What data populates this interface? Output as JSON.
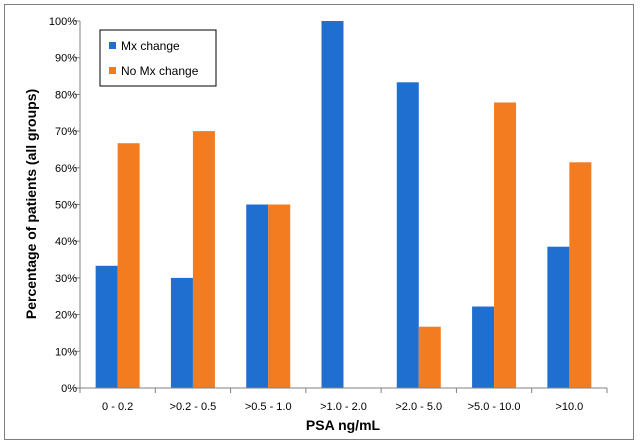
{
  "chart_data": {
    "type": "bar",
    "title": "",
    "xlabel": "PSA ng/mL",
    "ylabel": "Percentage of patients (all groups)",
    "ylim": [
      0,
      100
    ],
    "yticks": [
      "0%",
      "10%",
      "20%",
      "30%",
      "40%",
      "50%",
      "60%",
      "70%",
      "80%",
      "90%",
      "100%"
    ],
    "categories": [
      "0 - 0.2",
      ">0.2 - 0.5",
      ">0.5 - 1.0",
      ">1.0 - 2.0",
      ">2.0 - 5.0",
      ">5.0 - 10.0",
      ">10.0"
    ],
    "series": [
      {
        "name": "Mx change",
        "color": "#1f6fd1",
        "values": [
          33.3,
          30,
          50,
          100,
          83.3,
          22.2,
          38.5
        ]
      },
      {
        "name": "No Mx change",
        "color": "#f47c20",
        "values": [
          66.7,
          70,
          50,
          0,
          16.7,
          77.8,
          61.5
        ]
      }
    ],
    "grid": false,
    "legend_position": "top-left"
  }
}
